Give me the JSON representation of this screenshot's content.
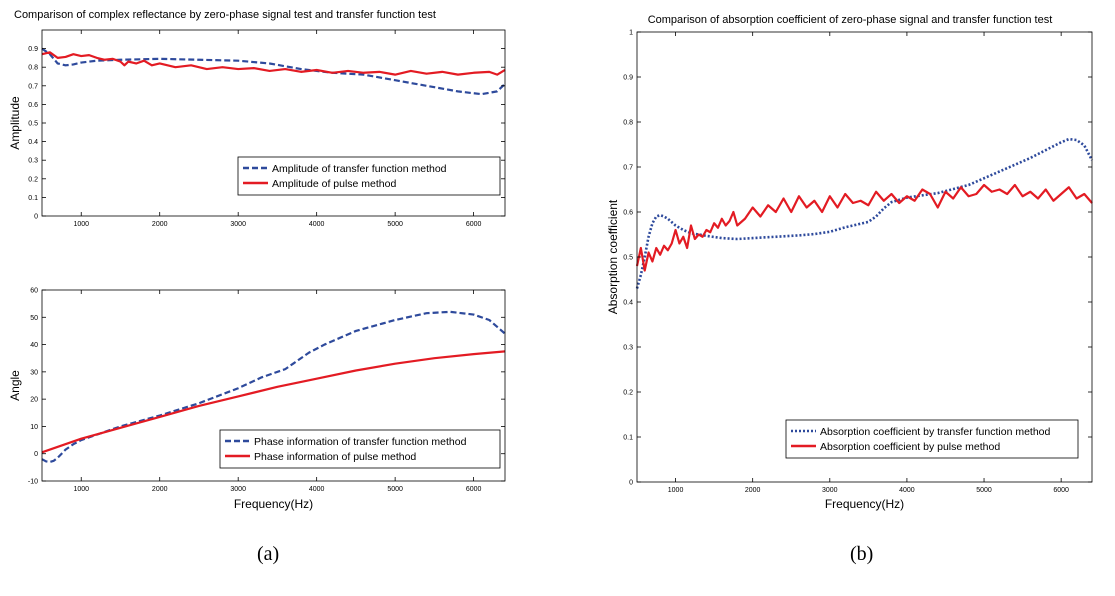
{
  "colors": {
    "blue": "#2e4a9c",
    "red": "#e31b23",
    "axis": "#000000",
    "background": "#ffffff"
  },
  "panels": {
    "a": "(a)",
    "b": "(b)"
  },
  "chart_data": [
    {
      "id": "amp",
      "type": "line",
      "title": "Comparison of complex reflectance by zero-phase signal test and transfer function test",
      "xlabel": "",
      "ylabel": "Amplitude",
      "xlim": [
        500,
        6400
      ],
      "ylim": [
        0,
        1
      ],
      "xticks": [
        1000,
        2000,
        3000,
        4000,
        5000,
        6000
      ],
      "yticks": [
        0,
        0.1,
        0.2,
        0.3,
        0.4,
        0.5,
        0.6,
        0.7,
        0.8,
        0.9
      ],
      "legend": "bottom-right",
      "series": [
        {
          "name": "Amplitude of transfer function method",
          "color": "#2e4a9c",
          "style": "dashed",
          "x": [
            500,
            600,
            700,
            800,
            900,
            1000,
            1200,
            1500,
            2000,
            2500,
            3000,
            3400,
            3800,
            4200,
            4600,
            5000,
            5400,
            5800,
            6100,
            6300,
            6400
          ],
          "y": [
            0.9,
            0.87,
            0.82,
            0.81,
            0.815,
            0.825,
            0.835,
            0.84,
            0.845,
            0.84,
            0.835,
            0.82,
            0.79,
            0.77,
            0.76,
            0.73,
            0.7,
            0.67,
            0.655,
            0.67,
            0.71
          ]
        },
        {
          "name": "Amplitude of pulse method",
          "color": "#e31b23",
          "style": "solid",
          "x": [
            500,
            600,
            700,
            800,
            900,
            1000,
            1100,
            1200,
            1300,
            1400,
            1500,
            1550,
            1600,
            1700,
            1800,
            1900,
            2000,
            2200,
            2400,
            2600,
            2800,
            3000,
            3200,
            3400,
            3600,
            3800,
            4000,
            4200,
            4400,
            4600,
            4800,
            5000,
            5200,
            5400,
            5600,
            5800,
            6000,
            6200,
            6300,
            6400
          ],
          "y": [
            0.87,
            0.88,
            0.85,
            0.855,
            0.87,
            0.86,
            0.865,
            0.85,
            0.84,
            0.845,
            0.83,
            0.81,
            0.83,
            0.82,
            0.835,
            0.81,
            0.82,
            0.8,
            0.81,
            0.79,
            0.8,
            0.79,
            0.795,
            0.78,
            0.79,
            0.775,
            0.785,
            0.77,
            0.78,
            0.77,
            0.775,
            0.76,
            0.78,
            0.765,
            0.775,
            0.76,
            0.77,
            0.775,
            0.76,
            0.785
          ]
        }
      ]
    },
    {
      "id": "angle",
      "type": "line",
      "title": "",
      "xlabel": "Frequency(Hz)",
      "ylabel": "Angle",
      "xlim": [
        500,
        6400
      ],
      "ylim": [
        -10,
        60
      ],
      "xticks": [
        1000,
        2000,
        3000,
        4000,
        5000,
        6000
      ],
      "yticks": [
        -10,
        0,
        10,
        20,
        30,
        40,
        50,
        60
      ],
      "legend": "bottom-right",
      "series": [
        {
          "name": "Phase information of transfer function method",
          "color": "#2e4a9c",
          "style": "dashed",
          "x": [
            500,
            550,
            600,
            650,
            700,
            750,
            800,
            900,
            1000,
            1200,
            1500,
            2000,
            2500,
            3000,
            3300,
            3600,
            3700,
            3900,
            4100,
            4500,
            5000,
            5400,
            5700,
            6000,
            6200,
            6400
          ],
          "y": [
            -2,
            -2.8,
            -3,
            -2.6,
            -1.5,
            0,
            1.5,
            3.5,
            5,
            7,
            10,
            14,
            18.5,
            24,
            28,
            31,
            33,
            37,
            40,
            45,
            49,
            51.5,
            52,
            51,
            49,
            44
          ]
        },
        {
          "name": "Phase information of pulse method",
          "color": "#e31b23",
          "style": "solid",
          "x": [
            500,
            1000,
            1500,
            2000,
            2500,
            3000,
            3500,
            4000,
            4500,
            5000,
            5500,
            6000,
            6400
          ],
          "y": [
            0.5,
            5.5,
            9.5,
            13.5,
            17.5,
            21,
            24.5,
            27.5,
            30.5,
            33,
            35,
            36.5,
            37.5
          ]
        }
      ]
    },
    {
      "id": "abs",
      "type": "line",
      "title": "Comparison of absorption coefficient of zero-phase signal and transfer function test",
      "xlabel": "Frequency(Hz)",
      "ylabel": "Absorption coefficient",
      "xlim": [
        500,
        6400
      ],
      "ylim": [
        0,
        1
      ],
      "xticks": [
        1000,
        2000,
        3000,
        4000,
        5000,
        6000
      ],
      "yticks": [
        0,
        0.1,
        0.2,
        0.3,
        0.4,
        0.5,
        0.6,
        0.7,
        0.8,
        0.9,
        1
      ],
      "legend": "bottom-right",
      "series": [
        {
          "name": "Absorption coefficient by transfer function method",
          "color": "#2e4a9c",
          "style": "dotted",
          "x": [
            500,
            550,
            600,
            650,
            700,
            750,
            800,
            850,
            900,
            1000,
            1100,
            1200,
            1400,
            1600,
            1800,
            2000,
            2200,
            2400,
            2600,
            2800,
            3000,
            3200,
            3400,
            3500,
            3600,
            3700,
            3800,
            4000,
            4400,
            4800,
            5200,
            5600,
            6000,
            6100,
            6200,
            6300,
            6400
          ],
          "y": [
            0.43,
            0.46,
            0.5,
            0.545,
            0.575,
            0.59,
            0.593,
            0.59,
            0.585,
            0.57,
            0.56,
            0.553,
            0.547,
            0.542,
            0.54,
            0.542,
            0.544,
            0.546,
            0.548,
            0.551,
            0.556,
            0.566,
            0.574,
            0.578,
            0.59,
            0.608,
            0.622,
            0.632,
            0.642,
            0.66,
            0.69,
            0.72,
            0.755,
            0.762,
            0.76,
            0.748,
            0.715
          ]
        },
        {
          "name": "Absorption coefficient by pulse method",
          "color": "#e31b23",
          "style": "solid",
          "x": [
            500,
            550,
            600,
            650,
            700,
            750,
            800,
            850,
            900,
            950,
            1000,
            1050,
            1100,
            1150,
            1200,
            1250,
            1300,
            1350,
            1400,
            1450,
            1500,
            1550,
            1600,
            1650,
            1700,
            1750,
            1800,
            1900,
            2000,
            2100,
            2200,
            2300,
            2400,
            2500,
            2600,
            2700,
            2800,
            2900,
            3000,
            3100,
            3200,
            3300,
            3400,
            3500,
            3600,
            3700,
            3800,
            3900,
            4000,
            4100,
            4200,
            4300,
            4400,
            4500,
            4600,
            4700,
            4800,
            4900,
            5000,
            5100,
            5200,
            5300,
            5400,
            5500,
            5600,
            5700,
            5800,
            5900,
            6000,
            6100,
            6200,
            6300,
            6400
          ],
          "y": [
            0.48,
            0.52,
            0.47,
            0.51,
            0.49,
            0.52,
            0.505,
            0.525,
            0.515,
            0.53,
            0.56,
            0.53,
            0.545,
            0.52,
            0.57,
            0.54,
            0.55,
            0.545,
            0.56,
            0.555,
            0.575,
            0.565,
            0.585,
            0.57,
            0.58,
            0.6,
            0.57,
            0.585,
            0.61,
            0.59,
            0.615,
            0.6,
            0.63,
            0.6,
            0.635,
            0.61,
            0.625,
            0.6,
            0.635,
            0.61,
            0.64,
            0.62,
            0.625,
            0.615,
            0.645,
            0.625,
            0.64,
            0.62,
            0.635,
            0.625,
            0.65,
            0.64,
            0.61,
            0.645,
            0.63,
            0.655,
            0.635,
            0.64,
            0.66,
            0.645,
            0.65,
            0.64,
            0.66,
            0.635,
            0.645,
            0.63,
            0.65,
            0.625,
            0.64,
            0.655,
            0.63,
            0.64,
            0.62
          ]
        }
      ]
    }
  ]
}
